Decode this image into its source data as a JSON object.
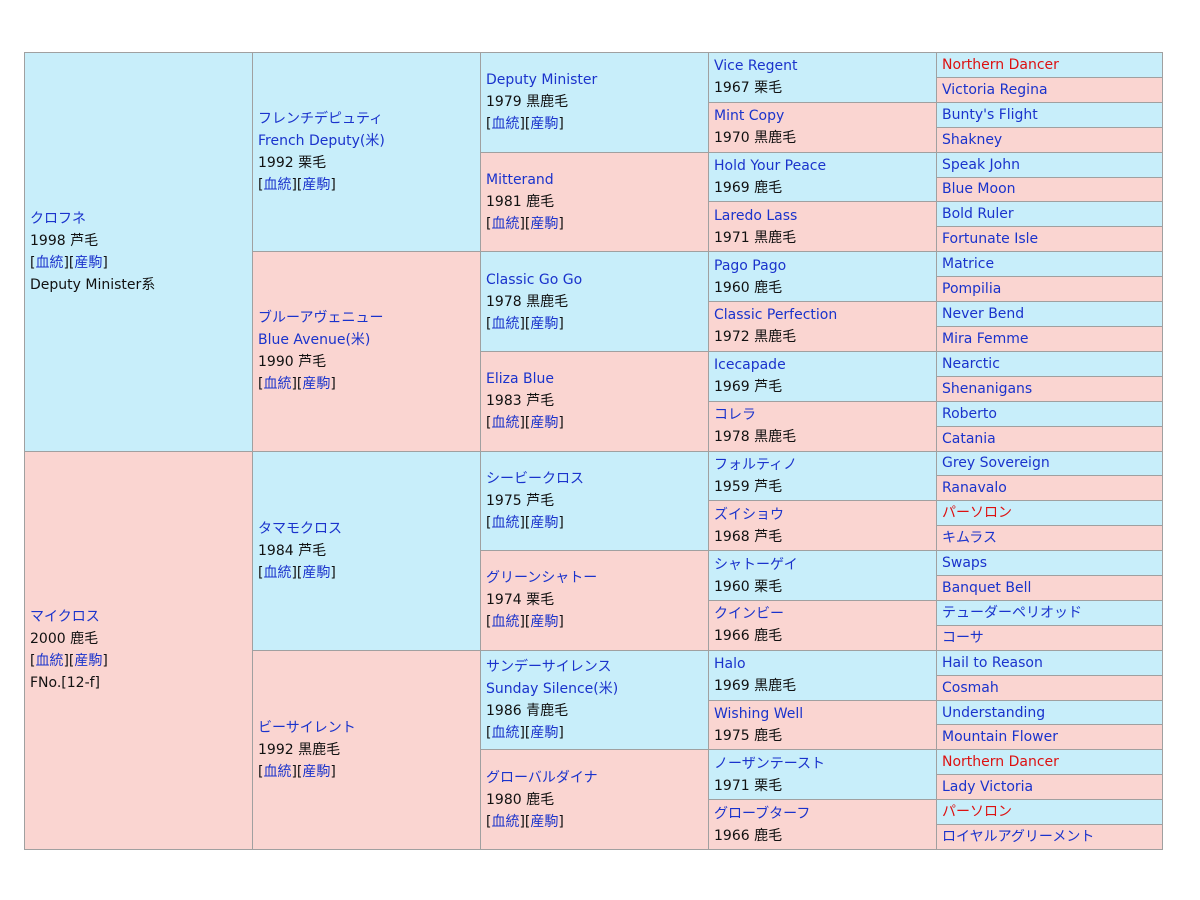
{
  "sire": {
    "name": "クロフネ",
    "birth": "1998 芦毛",
    "lineage": "Deputy Minister系",
    "sire": {
      "name": "フレンチデピュティ",
      "en": "French Deputy(米)",
      "birth": "1992 栗毛",
      "sire": {
        "name": "Deputy Minister",
        "birth": "1979 黒鹿毛",
        "sire": {
          "name": "Vice Regent",
          "birth": "1967 栗毛",
          "sire": "Northern Dancer",
          "dam": "Victoria Regina"
        },
        "dam": {
          "name": "Mint Copy",
          "birth": "1970 黒鹿毛",
          "sire": "Bunty's Flight",
          "dam": "Shakney"
        }
      },
      "dam": {
        "name": "Mitterand",
        "birth": "1981 鹿毛",
        "sire": {
          "name": "Hold Your Peace",
          "birth": "1969 鹿毛",
          "sire": "Speak John",
          "dam": "Blue Moon"
        },
        "dam": {
          "name": "Laredo Lass",
          "birth": "1971 黒鹿毛",
          "sire": "Bold Ruler",
          "dam": "Fortunate Isle"
        }
      }
    },
    "dam": {
      "name": "ブルーアヴェニュー",
      "en": "Blue Avenue(米)",
      "birth": "1990 芦毛",
      "sire": {
        "name": "Classic Go Go",
        "birth": "1978 黒鹿毛",
        "sire": {
          "name": "Pago Pago",
          "birth": "1960 鹿毛",
          "sire": "Matrice",
          "dam": "Pompilia"
        },
        "dam": {
          "name": "Classic Perfection",
          "birth": "1972 黒鹿毛",
          "sire": "Never Bend",
          "dam": "Mira Femme"
        }
      },
      "dam": {
        "name": "Eliza Blue",
        "birth": "1983 芦毛",
        "sire": {
          "name": "Icecapade",
          "birth": "1969 芦毛",
          "sire": "Nearctic",
          "dam": "Shenanigans"
        },
        "dam": {
          "name": "コレラ",
          "birth": "1978 黒鹿毛",
          "sire": "Roberto",
          "dam": "Catania"
        }
      }
    }
  },
  "dam": {
    "name": "マイクロス",
    "birth": "2000 鹿毛",
    "family": "FNo.[12-f]",
    "sire": {
      "name": "タマモクロス",
      "birth": "1984 芦毛",
      "sire": {
        "name": "シービークロス",
        "birth": "1975 芦毛",
        "sire": {
          "name": "フォルティノ",
          "birth": "1959 芦毛",
          "sire": "Grey Sovereign",
          "dam": "Ranavalo"
        },
        "dam": {
          "name": "ズイショウ",
          "birth": "1968 芦毛",
          "sire": "パーソロン",
          "dam": "キムラス"
        }
      },
      "dam": {
        "name": "グリーンシャトー",
        "birth": "1974 栗毛",
        "sire": {
          "name": "シャトーゲイ",
          "birth": "1960 栗毛",
          "sire": "Swaps",
          "dam": "Banquet Bell"
        },
        "dam": {
          "name": "クインビー",
          "birth": "1966 鹿毛",
          "sire": "テューダーペリオッド",
          "dam": "コーサ"
        }
      }
    },
    "dam": {
      "name": "ビーサイレント",
      "birth": "1992 黒鹿毛",
      "sire": {
        "name": "サンデーサイレンス",
        "en": "Sunday Silence(米)",
        "birth": "1986 青鹿毛",
        "sire": {
          "name": "Halo",
          "birth": "1969 黒鹿毛",
          "sire": "Hail to Reason",
          "dam": "Cosmah"
        },
        "dam": {
          "name": "Wishing Well",
          "birth": "1975 鹿毛",
          "sire": "Understanding",
          "dam": "Mountain Flower"
        }
      },
      "dam": {
        "name": "グローバルダイナ",
        "birth": "1980 鹿毛",
        "sire": {
          "name": "ノーザンテースト",
          "birth": "1971 栗毛",
          "sire": "Northern Dancer",
          "dam": "Lady Victoria"
        },
        "dam": {
          "name": "グローブターフ",
          "birth": "1966 鹿毛",
          "sire": "パーソロン",
          "dam": "ロイヤルアグリーメント"
        }
      }
    }
  },
  "links": {
    "pedigree": "血統",
    "progeny": "産駒"
  },
  "colors": {
    "male_bg": "#c8eefa",
    "female_bg": "#fad5d1",
    "link": "#1a33cc",
    "inbreed": "#dd1111"
  }
}
